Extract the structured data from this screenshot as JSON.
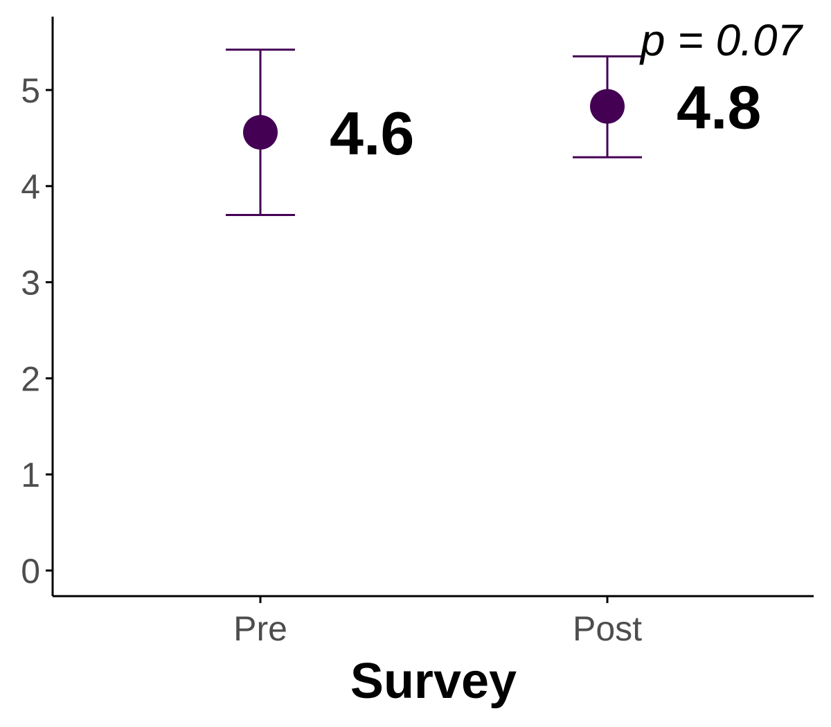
{
  "chart_data": {
    "type": "scatter",
    "categories": [
      "Pre",
      "Post"
    ],
    "series": [
      {
        "values": [
          4.56,
          4.83
        ],
        "lower": [
          3.7,
          4.3
        ],
        "upper": [
          5.42,
          5.35
        ],
        "value_labels": [
          "4.6",
          "4.8"
        ]
      }
    ],
    "xlabel": "Survey",
    "ylabel": "",
    "ylim": [
      0,
      5.77
    ],
    "yticks": [
      0,
      1,
      2,
      3,
      4,
      5
    ],
    "annotation": "p =  0.07",
    "grid": false,
    "legend": "none",
    "colors": {
      "point": "#440154",
      "axis": "#000000",
      "tick_text": "#4d4d4d"
    }
  }
}
